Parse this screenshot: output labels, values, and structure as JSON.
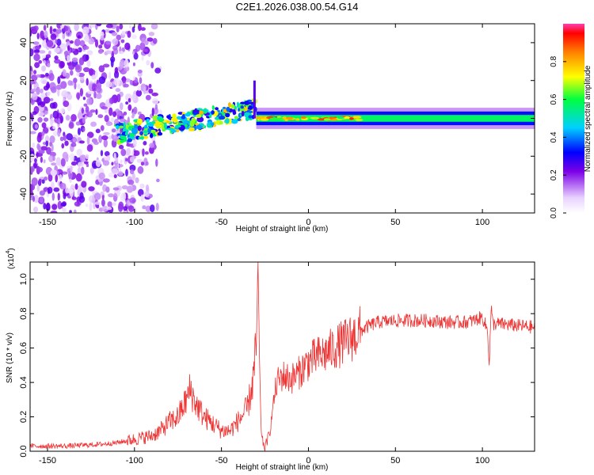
{
  "title": "C2E1.2026.038.00.54.G14",
  "chart_data": [
    {
      "type": "heatmap",
      "xlabel": "Height of straight line (km)",
      "ylabel": "Frequency (Hz)",
      "xlim": [
        -160,
        130
      ],
      "ylim": [
        -50,
        50
      ],
      "xticks": [
        -150,
        -100,
        -50,
        0,
        50,
        100
      ],
      "yticks": [
        -40,
        -20,
        0,
        20,
        40
      ],
      "xtick_labels": [
        "-150",
        "-100",
        "-50",
        "0",
        "50",
        "100"
      ],
      "ytick_labels": [
        "-40",
        "-20",
        "0",
        "20",
        "40"
      ],
      "colorbar": {
        "label": "Normalized spectral amplitude",
        "range": [
          0,
          1
        ],
        "ticks": [
          0.0,
          0.2,
          0.4,
          0.6,
          0.8
        ],
        "tick_labels": [
          "0.0",
          "0.2",
          "0.4",
          "0.6",
          "0.8"
        ]
      },
      "features": [
        {
          "name": "noise region",
          "x_range": [
            -160,
            -85
          ],
          "freq_range": [
            -50,
            50
          ],
          "amplitude": 0.15
        },
        {
          "name": "scattered signal",
          "x_range": [
            -110,
            -30
          ],
          "freq_center_start": -8,
          "freq_center_end": 5,
          "amplitude": 0.45
        },
        {
          "name": "spike",
          "x": -31,
          "freq_range": [
            0,
            20
          ],
          "amplitude": 0.2
        },
        {
          "name": "stable signal band",
          "x_range": [
            -30,
            130
          ],
          "freq_center": 0,
          "freq_halfwidth": 4,
          "amplitude": 0.5
        }
      ]
    },
    {
      "type": "line",
      "xlabel": "Height of straight line (km)",
      "ylabel": "SNR (10 * v/v)",
      "yscale_label": "(x10",
      "yscale_exponent": "4",
      "xlim": [
        -160,
        130
      ],
      "ylim": [
        0,
        1.1
      ],
      "xticks": [
        -150,
        -100,
        -50,
        0,
        50,
        100
      ],
      "yticks": [
        0.0,
        0.2,
        0.4,
        0.6,
        0.8,
        1.0
      ],
      "xtick_labels": [
        "-150",
        "-100",
        "-50",
        "0",
        "50",
        "100"
      ],
      "ytick_labels": [
        "0.0",
        "0.2",
        "0.4",
        "0.6",
        "0.8",
        "1.0"
      ],
      "series": [
        {
          "name": "SNR",
          "color": "#ee3333",
          "x": [
            -160,
            -140,
            -120,
            -110,
            -100,
            -95,
            -90,
            -85,
            -80,
            -75,
            -70,
            -68,
            -65,
            -60,
            -55,
            -50,
            -45,
            -40,
            -35,
            -32,
            -30,
            -29,
            -28,
            -27,
            -25,
            -22,
            -20,
            -18,
            -15,
            -10,
            -5,
            0,
            5,
            10,
            15,
            20,
            25,
            30,
            35,
            40,
            50,
            60,
            70,
            80,
            90,
            95,
            100,
            103,
            104,
            105,
            106,
            110,
            120,
            130
          ],
          "values": [
            0.03,
            0.03,
            0.04,
            0.05,
            0.07,
            0.08,
            0.09,
            0.12,
            0.17,
            0.2,
            0.3,
            0.36,
            0.28,
            0.2,
            0.16,
            0.12,
            0.12,
            0.18,
            0.25,
            0.4,
            0.6,
            1.1,
            0.45,
            0.08,
            0.02,
            0.12,
            0.3,
            0.4,
            0.44,
            0.42,
            0.46,
            0.52,
            0.55,
            0.57,
            0.6,
            0.63,
            0.66,
            0.7,
            0.73,
            0.75,
            0.76,
            0.76,
            0.76,
            0.75,
            0.75,
            0.76,
            0.78,
            0.7,
            0.5,
            0.84,
            0.74,
            0.74,
            0.73,
            0.72
          ]
        }
      ]
    }
  ]
}
